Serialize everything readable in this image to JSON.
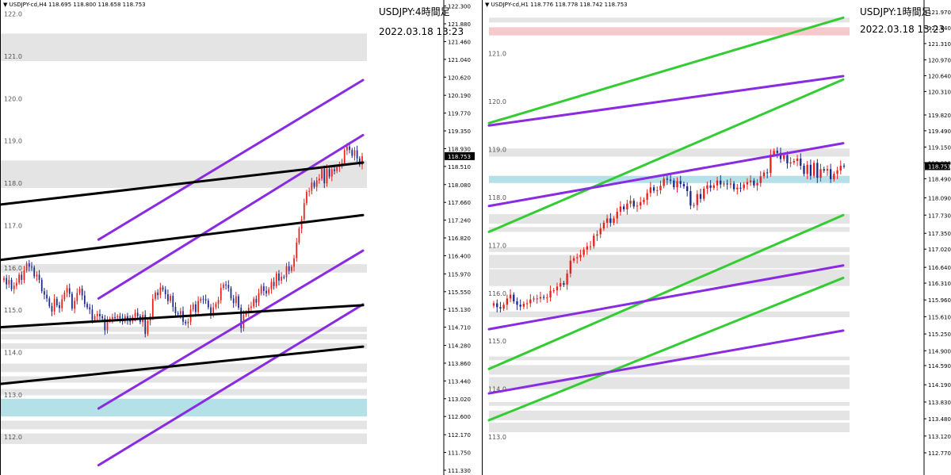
{
  "colors": {
    "background": "#ffffff",
    "bull": "#e8201c",
    "bear": "#1a2a8c",
    "purple_channel": "#8a2be2",
    "green_channel": "#33cc33",
    "black_channel": "#000000",
    "zone_gray": "#e4e4e4",
    "zone_blue": "#b4e1e8",
    "zone_pink": "#f7c8cc",
    "price_tag": "#000000"
  },
  "chart_data": [
    {
      "type": "candlestick",
      "symbol_line": "USDJPY-cd,H4 118.695 118.800 118.658 118.753",
      "title": "USDJPY:4時間足",
      "date": "2022.03.18 13:23",
      "current_price": "118.753",
      "ylim": [
        111.33,
        122.33
      ],
      "right_ticks": [
        "122.300",
        "121.880",
        "121.460",
        "121.040",
        "120.620",
        "120.190",
        "119.770",
        "119.350",
        "118.930",
        "118.510",
        "118.080",
        "117.660",
        "117.240",
        "116.820",
        "116.400",
        "115.970",
        "115.550",
        "115.130",
        "114.710",
        "114.280",
        "113.860",
        "113.440",
        "113.020",
        "112.600",
        "112.170",
        "111.750",
        "111.330"
      ],
      "left_labels": [
        "122.0",
        "121.0",
        "120.0",
        "119.0",
        "118.0",
        "117.0",
        "116.0",
        "115.0",
        "114.0",
        "113.0",
        "112.0"
      ],
      "zones": [
        {
          "y1": 121.0,
          "y2": 121.65,
          "kind": "gray"
        },
        {
          "y1": 118.0,
          "y2": 118.65,
          "kind": "gray"
        },
        {
          "y1": 116.0,
          "y2": 116.2,
          "kind": "gray"
        },
        {
          "y1": 114.6,
          "y2": 114.72,
          "kind": "gray"
        },
        {
          "y1": 114.42,
          "y2": 114.55,
          "kind": "gray"
        },
        {
          "y1": 114.2,
          "y2": 114.33,
          "kind": "gray"
        },
        {
          "y1": 113.65,
          "y2": 113.85,
          "kind": "gray"
        },
        {
          "y1": 113.4,
          "y2": 113.55,
          "kind": "gray"
        },
        {
          "y1": 113.1,
          "y2": 113.25,
          "kind": "gray"
        },
        {
          "y1": 112.6,
          "y2": 113.02,
          "kind": "blue"
        },
        {
          "y1": 112.3,
          "y2": 112.5,
          "kind": "gray"
        },
        {
          "y1": 111.95,
          "y2": 112.2,
          "kind": "gray"
        }
      ],
      "lines": [
        {
          "color": "purple",
          "x1": 0.27,
          "y1": 116.78,
          "x2": 1.0,
          "y2": 120.55
        },
        {
          "color": "purple",
          "x1": 0.27,
          "y1": 115.39,
          "x2": 1.0,
          "y2": 119.25
        },
        {
          "color": "purple",
          "x1": 0.27,
          "y1": 112.79,
          "x2": 1.0,
          "y2": 116.52
        },
        {
          "color": "purple",
          "x1": 0.27,
          "y1": 111.45,
          "x2": 1.0,
          "y2": 115.25
        },
        {
          "color": "black",
          "x1": 0.0,
          "y1": 117.61,
          "x2": 1.0,
          "y2": 118.6
        },
        {
          "color": "black",
          "x1": 0.0,
          "y1": 116.3,
          "x2": 1.0,
          "y2": 117.36
        },
        {
          "color": "black",
          "x1": 0.0,
          "y1": 114.71,
          "x2": 1.0,
          "y2": 115.23
        },
        {
          "color": "black",
          "x1": 0.0,
          "y1": 113.37,
          "x2": 1.0,
          "y2": 114.25
        }
      ],
      "series": [
        {
          "name": "",
          "values": [
            115.87,
            115.72,
            115.83,
            115.61,
            115.69,
            115.76,
            115.95,
            115.83,
            116.05,
            116.22,
            116.14,
            116.12,
            115.91,
            115.95,
            115.83,
            115.56,
            115.48,
            115.39,
            115.21,
            115.08,
            115.38,
            115.23,
            115.16,
            115.37,
            115.53,
            115.63,
            115.5,
            115.15,
            115.33,
            115.52,
            115.62,
            115.46,
            115.26,
            115.18,
            115.13,
            114.88,
            114.97,
            115.02,
            114.97,
            114.92,
            114.64,
            114.86,
            114.91,
            114.95,
            114.94,
            114.97,
            114.92,
            114.85,
            114.97,
            114.88,
            114.84,
            114.96,
            115.05,
            114.97,
            114.83,
            115.0,
            114.55,
            114.86,
            114.96,
            115.38,
            115.53,
            115.47,
            115.65,
            115.6,
            115.49,
            115.33,
            115.45,
            115.19,
            115.04,
            115.02,
            115.09,
            114.84,
            114.8,
            114.84,
            115.13,
            115.25,
            115.07,
            115.33,
            115.38,
            115.37,
            115.34,
            115.18,
            115.02,
            115.18,
            115.26,
            115.35,
            115.64,
            115.72,
            115.71,
            115.63,
            115.39,
            115.28,
            115.44,
            115.17,
            114.69,
            115.0,
            115.06,
            115.17,
            115.2,
            115.38,
            115.29,
            115.51,
            115.68,
            115.57,
            115.51,
            115.61,
            115.78,
            115.68,
            115.98,
            115.81,
            115.9,
            115.89,
            116.15,
            116.04,
            116.14,
            116.34,
            116.71,
            117.04,
            117.26,
            117.64,
            117.91,
            117.93,
            118.13,
            118.03,
            118.18,
            118.22,
            118.45,
            118.11,
            118.45,
            118.27,
            118.44,
            118.4,
            118.49,
            118.54,
            118.58,
            118.89,
            118.98,
            118.9,
            118.76,
            118.89,
            118.7,
            118.55,
            118.75
          ]
        }
      ]
    },
    {
      "type": "candlestick",
      "symbol_line": "USDJPY-cd,H1 118.776 118.778 118.742 118.753",
      "title": "USDJPY:1時間足",
      "date": "2022.03.18 13:23",
      "current_price": "118.753",
      "ylim": [
        112.77,
        122.07
      ],
      "right_ticks": [
        "121.970",
        "121.640",
        "121.310",
        "120.970",
        "120.640",
        "120.310",
        "119.820",
        "119.490",
        "119.150",
        "118.820",
        "118.490",
        "118.090",
        "117.730",
        "117.350",
        "117.020",
        "116.640",
        "116.310",
        "115.960",
        "115.610",
        "115.250",
        "114.900",
        "114.590",
        "114.190",
        "113.830",
        "113.480",
        "113.120",
        "112.770"
      ],
      "left_labels": [
        "121.0",
        "120.0",
        "119.0",
        "118.0",
        "117.0",
        "116.0",
        "115.0",
        "114.0",
        "113.0"
      ],
      "zones": [
        {
          "y1": 121.75,
          "y2": 121.85,
          "kind": "gray"
        },
        {
          "y1": 121.48,
          "y2": 121.65,
          "kind": "pink"
        },
        {
          "y1": 118.95,
          "y2": 119.12,
          "kind": "gray"
        },
        {
          "y1": 118.4,
          "y2": 118.55,
          "kind": "blue"
        },
        {
          "y1": 117.55,
          "y2": 117.75,
          "kind": "gray"
        },
        {
          "y1": 117.38,
          "y2": 117.48,
          "kind": "gray"
        },
        {
          "y1": 116.96,
          "y2": 117.06,
          "kind": "gray"
        },
        {
          "y1": 116.62,
          "y2": 116.9,
          "kind": "gray"
        },
        {
          "y1": 116.25,
          "y2": 116.6,
          "kind": "gray"
        },
        {
          "y1": 115.6,
          "y2": 115.72,
          "kind": "gray"
        },
        {
          "y1": 114.7,
          "y2": 114.78,
          "kind": "gray"
        },
        {
          "y1": 114.4,
          "y2": 114.6,
          "kind": "gray"
        },
        {
          "y1": 114.1,
          "y2": 114.35,
          "kind": "gray"
        },
        {
          "y1": 113.75,
          "y2": 113.83,
          "kind": "gray"
        },
        {
          "y1": 113.45,
          "y2": 113.65,
          "kind": "gray"
        },
        {
          "y1": 113.2,
          "y2": 113.4,
          "kind": "gray"
        }
      ],
      "lines": [
        {
          "color": "green",
          "x1": 0.0,
          "y1": 119.65,
          "x2": 1.0,
          "y2": 121.85
        },
        {
          "color": "green",
          "x1": 0.0,
          "y1": 117.38,
          "x2": 1.0,
          "y2": 120.56
        },
        {
          "color": "green",
          "x1": 0.0,
          "y1": 114.52,
          "x2": 1.0,
          "y2": 117.73
        },
        {
          "color": "green",
          "x1": 0.0,
          "y1": 113.45,
          "x2": 1.0,
          "y2": 116.42
        },
        {
          "color": "purple",
          "x1": 0.0,
          "y1": 119.6,
          "x2": 1.0,
          "y2": 120.63
        },
        {
          "color": "purple",
          "x1": 0.0,
          "y1": 117.92,
          "x2": 1.0,
          "y2": 119.23
        },
        {
          "color": "purple",
          "x1": 0.0,
          "y1": 115.35,
          "x2": 1.0,
          "y2": 116.68
        },
        {
          "color": "purple",
          "x1": 0.0,
          "y1": 114.01,
          "x2": 1.0,
          "y2": 115.32
        }
      ],
      "series": [
        {
          "name": "",
          "values": [
            115.89,
            115.81,
            115.78,
            115.86,
            115.99,
            116.07,
            115.93,
            115.86,
            115.82,
            115.88,
            115.89,
            115.97,
            115.99,
            115.99,
            116.02,
            116.01,
            116.01,
            116.15,
            116.16,
            116.24,
            116.31,
            116.28,
            116.51,
            116.78,
            116.83,
            116.85,
            116.9,
            117.01,
            117.08,
            117.08,
            117.3,
            117.33,
            117.45,
            117.57,
            117.66,
            117.57,
            117.66,
            117.8,
            117.91,
            117.85,
            117.97,
            118.03,
            117.91,
            117.93,
            118.0,
            118.05,
            118.19,
            118.31,
            118.24,
            118.25,
            118.34,
            118.49,
            118.47,
            118.45,
            118.31,
            118.44,
            118.38,
            118.33,
            118.23,
            117.93,
            117.94,
            118.17,
            118.07,
            118.28,
            118.35,
            118.3,
            118.35,
            118.45,
            118.37,
            118.39,
            118.37,
            118.39,
            118.27,
            118.3,
            118.29,
            118.37,
            118.42,
            118.45,
            118.35,
            118.4,
            118.54,
            118.62,
            118.61,
            118.99,
            119.07,
            119.03,
            118.9,
            118.98,
            118.81,
            118.83,
            118.86,
            118.91,
            118.76,
            118.59,
            118.78,
            118.55,
            118.82,
            118.51,
            118.69,
            118.66,
            118.69,
            118.48,
            118.59,
            118.66,
            118.76,
            118.75
          ]
        }
      ]
    }
  ]
}
